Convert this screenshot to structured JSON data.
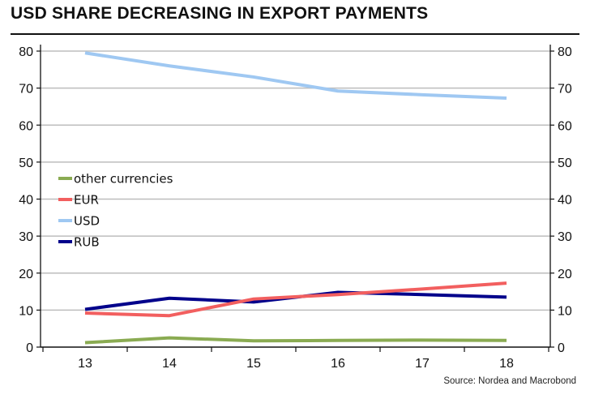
{
  "chart_data": {
    "type": "line",
    "title": "USD SHARE DECREASING IN EXPORT PAYMENTS",
    "source": "Source: Nordea and Macrobond",
    "xlabel": "",
    "ylabel": "",
    "categories": [
      "13",
      "14",
      "15",
      "16",
      "17",
      "18"
    ],
    "ylim": [
      0,
      80
    ],
    "yticks": [
      0,
      10,
      20,
      30,
      40,
      50,
      60,
      70,
      80
    ],
    "y_axis_sides": "both",
    "grid": true,
    "legend_position": "center-left",
    "series": [
      {
        "name": "other currencies",
        "color": "#8aab52",
        "values": [
          1.2,
          2.5,
          1.7,
          1.8,
          1.9,
          1.8
        ]
      },
      {
        "name": "EUR",
        "color": "#f25f5f",
        "values": [
          9.2,
          8.5,
          13.0,
          14.2,
          15.7,
          17.3
        ]
      },
      {
        "name": "USD",
        "color": "#9fc8f2",
        "values": [
          79.5,
          76.0,
          73.0,
          69.2,
          68.2,
          67.3
        ]
      },
      {
        "name": "RUB",
        "color": "#00008b",
        "values": [
          10.2,
          13.2,
          12.2,
          14.8,
          14.2,
          13.5
        ]
      }
    ]
  }
}
